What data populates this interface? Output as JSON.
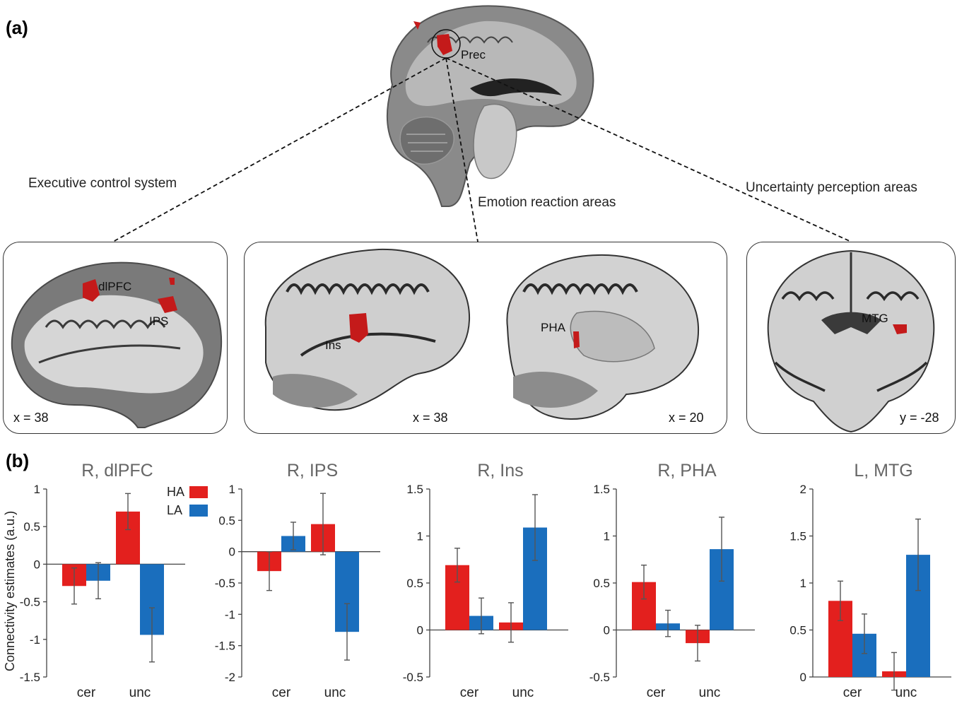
{
  "panel_a": {
    "label": "(a)",
    "seed_label": "Prec",
    "captions": {
      "executive": "Executive control system",
      "emotion": "Emotion reaction areas",
      "uncertainty": "Uncertainty perception areas"
    },
    "slices": [
      {
        "coord": "x = 38",
        "regions": [
          "dlPFC",
          "IPS"
        ]
      },
      {
        "coord": "x = 38",
        "regions": [
          "Ins"
        ]
      },
      {
        "coord": "x = 20",
        "regions": [
          "PHA"
        ]
      },
      {
        "coord": "y = -28",
        "regions": [
          "MTG"
        ]
      }
    ]
  },
  "panel_b": {
    "label": "(b)",
    "ylabel": "Connectivity estimates (a.u.)",
    "legend": [
      {
        "name": "HA",
        "color": "#e3201e"
      },
      {
        "name": "LA",
        "color": "#1a6ebd"
      }
    ]
  },
  "colors": {
    "HA": "#e3201e",
    "LA": "#1a6ebd",
    "activation": "#c41a1a"
  },
  "chart_data": [
    {
      "type": "bar",
      "title": "R, dlPFC",
      "categories": [
        "cer",
        "unc"
      ],
      "series": [
        {
          "name": "HA",
          "values": [
            -0.29,
            0.7
          ],
          "err": [
            0.24,
            0.24
          ]
        },
        {
          "name": "LA",
          "values": [
            -0.22,
            -0.94
          ],
          "err": [
            0.24,
            0.36
          ]
        }
      ],
      "ylim": [
        -1.5,
        1
      ],
      "yticks": [
        "1",
        "0.5",
        "0",
        "-0.5",
        "-1",
        "-1.5"
      ],
      "ytick_values": [
        1,
        0.5,
        0,
        -0.5,
        -1,
        -1.5
      ]
    },
    {
      "type": "bar",
      "title": "R, IPS",
      "categories": [
        "cer",
        "unc"
      ],
      "series": [
        {
          "name": "HA",
          "values": [
            -0.31,
            0.44
          ],
          "err": [
            0.31,
            0.49
          ]
        },
        {
          "name": "LA",
          "values": [
            0.25,
            -1.28
          ],
          "err": [
            0.22,
            0.45
          ]
        }
      ],
      "ylim": [
        -2,
        1
      ],
      "yticks": [
        "1",
        "0.5",
        "0",
        "-0.5",
        "-1",
        "-1.5",
        "-2"
      ],
      "ytick_values": [
        1,
        0.5,
        0,
        -0.5,
        -1,
        -1.5,
        -2
      ]
    },
    {
      "type": "bar",
      "title": "R, Ins",
      "categories": [
        "cer",
        "unc"
      ],
      "series": [
        {
          "name": "HA",
          "values": [
            0.69,
            0.08
          ],
          "err": [
            0.18,
            0.21
          ]
        },
        {
          "name": "LA",
          "values": [
            0.15,
            1.09
          ],
          "err": [
            0.19,
            0.35
          ]
        }
      ],
      "ylim": [
        -0.5,
        1.5
      ],
      "yticks": [
        "1.5",
        "1",
        "0.5",
        "0",
        "-0.5"
      ],
      "ytick_values": [
        1.5,
        1,
        0.5,
        0,
        -0.5
      ]
    },
    {
      "type": "bar",
      "title": "R, PHA",
      "categories": [
        "cer",
        "unc"
      ],
      "series": [
        {
          "name": "HA",
          "values": [
            0.51,
            -0.14
          ],
          "err": [
            0.18,
            0.19
          ]
        },
        {
          "name": "LA",
          "values": [
            0.07,
            0.86
          ],
          "err": [
            0.14,
            0.34
          ]
        }
      ],
      "ylim": [
        -0.5,
        1.5
      ],
      "yticks": [
        "1.5",
        "1",
        "0.5",
        "0",
        "-0.5"
      ],
      "ytick_values": [
        1.5,
        1,
        0.5,
        0,
        -0.5
      ]
    },
    {
      "type": "bar",
      "title": "L, MTG",
      "categories": [
        "cer",
        "unc"
      ],
      "series": [
        {
          "name": "HA",
          "values": [
            0.81,
            0.06
          ],
          "err": [
            0.21,
            0.2
          ]
        },
        {
          "name": "LA",
          "values": [
            0.46,
            1.3
          ],
          "err": [
            0.21,
            0.38
          ]
        }
      ],
      "ylim": [
        0,
        2
      ],
      "yticks": [
        "2",
        "1.5",
        "1",
        "0.5",
        "0"
      ],
      "ytick_values": [
        2,
        1.5,
        1,
        0.5,
        0
      ]
    }
  ]
}
